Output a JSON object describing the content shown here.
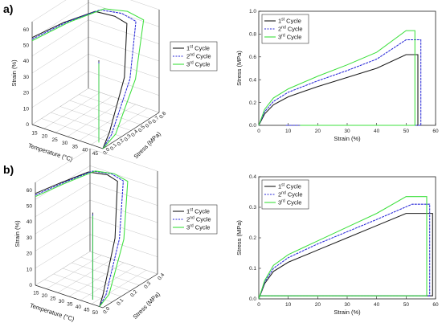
{
  "panel_labels": [
    "a)",
    "b)"
  ],
  "cycle_colors": [
    "#1a1a1a",
    "#2a2ad8",
    "#3ce03c"
  ],
  "chart_data": [
    {
      "id": "a-3d",
      "type": "line",
      "projection": "3d",
      "xlabel": "Temperature (°C)",
      "ylabel": "Stress (MPa)",
      "zlabel": "Strain (%)",
      "xticks": [
        "15",
        "20",
        "25",
        "30",
        "35",
        "40",
        "45"
      ],
      "yticks": [
        "0.0",
        "0.1",
        "0.2",
        "0.3",
        "0.4",
        "0.5",
        "0.6",
        "0.7",
        "0.8"
      ],
      "zticks": [
        "0",
        "10",
        "20",
        "30",
        "40",
        "50",
        "60"
      ],
      "xlim": [
        10,
        45
      ],
      "ylim": [
        0,
        0.8
      ],
      "zlim": [
        0,
        65
      ],
      "legend": {
        "position": "right",
        "entries": [
          {
            "sup": "st",
            "rest": " Cycle",
            "num": "1"
          },
          {
            "sup": "nd",
            "rest": " Cycle",
            "num": "2"
          },
          {
            "sup": "rd",
            "rest": " Cycle",
            "num": "3"
          }
        ]
      },
      "series": [
        {
          "name": "1st Cycle",
          "points": [
            [
              10,
              0.0,
              55
            ],
            [
              15,
              0.3,
              58
            ],
            [
              22,
              0.55,
              61
            ],
            [
              30,
              0.6,
              60
            ],
            [
              36,
              0.6,
              58
            ],
            [
              40,
              0.45,
              30
            ],
            [
              43,
              0.15,
              5
            ],
            [
              45,
              0.0,
              0
            ]
          ],
          "drop": [
            [
              43,
              0.0,
              55
            ],
            [
              43,
              0.0,
              40
            ],
            [
              43,
              0.0,
              20
            ],
            [
              43,
              0.0,
              5
            ]
          ]
        },
        {
          "name": "2nd Cycle",
          "points": [
            [
              10,
              0.0,
              54
            ],
            [
              15,
              0.35,
              57
            ],
            [
              22,
              0.62,
              60
            ],
            [
              30,
              0.7,
              59
            ],
            [
              37,
              0.7,
              57
            ],
            [
              41,
              0.5,
              28
            ],
            [
              44,
              0.15,
              4
            ],
            [
              45,
              0.0,
              0
            ]
          ],
          "drop": [
            [
              43,
              0.0,
              54
            ],
            [
              43,
              0.0,
              38
            ],
            [
              43,
              0.0,
              20
            ],
            [
              43,
              0.0,
              4
            ]
          ]
        },
        {
          "name": "3rd Cycle",
          "points": [
            [
              10,
              0.0,
              53
            ],
            [
              15,
              0.38,
              56
            ],
            [
              22,
              0.68,
              59
            ],
            [
              30,
              0.78,
              58
            ],
            [
              38,
              0.78,
              56
            ],
            [
              42,
              0.55,
              27
            ],
            [
              45,
              0.18,
              4
            ],
            [
              45,
              0.0,
              0
            ]
          ],
          "drop": [
            [
              43,
              0.0,
              53
            ],
            [
              43,
              0.0,
              37
            ],
            [
              43,
              0.0,
              20
            ],
            [
              43,
              0.0,
              3
            ]
          ]
        }
      ]
    },
    {
      "id": "a-2d",
      "type": "line",
      "xlabel": "Strain (%)",
      "ylabel": "Stress (MPa)",
      "xticks": [
        0,
        10,
        20,
        30,
        40,
        50,
        60
      ],
      "yticks": [
        "0.0",
        "0.2",
        "0.4",
        "0.6",
        "0.8",
        "1.0"
      ],
      "xlim": [
        0,
        60
      ],
      "ylim": [
        0,
        1.0
      ],
      "legend": {
        "position": "top-left",
        "entries": [
          {
            "sup": "st",
            "rest": " Cycle",
            "num": "1"
          },
          {
            "sup": "nd",
            "rest": " Cycle",
            "num": "2"
          },
          {
            "sup": "rd",
            "rest": " Cycle",
            "num": "3"
          }
        ]
      },
      "series": [
        {
          "name": "1st Cycle",
          "points": [
            [
              0,
              0.0
            ],
            [
              2,
              0.1
            ],
            [
              5,
              0.18
            ],
            [
              10,
              0.25
            ],
            [
              20,
              0.34
            ],
            [
              30,
              0.42
            ],
            [
              40,
              0.5
            ],
            [
              50,
              0.62
            ],
            [
              54,
              0.62
            ],
            [
              54,
              0.0
            ],
            [
              53,
              0.0
            ]
          ]
        },
        {
          "name": "2nd Cycle",
          "points": [
            [
              0,
              0.0
            ],
            [
              2,
              0.12
            ],
            [
              5,
              0.21
            ],
            [
              10,
              0.29
            ],
            [
              20,
              0.39
            ],
            [
              30,
              0.48
            ],
            [
              40,
              0.58
            ],
            [
              50,
              0.75
            ],
            [
              55,
              0.75
            ],
            [
              55,
              0.0
            ],
            [
              9,
              0.0
            ]
          ]
        },
        {
          "name": "3rd Cycle",
          "points": [
            [
              0,
              0.0
            ],
            [
              2,
              0.14
            ],
            [
              5,
              0.24
            ],
            [
              10,
              0.32
            ],
            [
              20,
              0.43
            ],
            [
              30,
              0.53
            ],
            [
              40,
              0.64
            ],
            [
              50,
              0.83
            ],
            [
              53,
              0.83
            ],
            [
              53,
              0.0
            ],
            [
              14,
              0.0
            ]
          ]
        }
      ]
    },
    {
      "id": "b-3d",
      "type": "line",
      "projection": "3d",
      "xlabel": "Temperature (°C)",
      "ylabel": "Stress (MPa)",
      "zlabel": "Strain (%)",
      "xticks": [
        "15",
        "20",
        "25",
        "30",
        "35",
        "40",
        "45",
        "50"
      ],
      "yticks": [
        "0.0",
        "0.1",
        "0.2",
        "0.3",
        "0.4"
      ],
      "zticks": [
        "0",
        "10",
        "20",
        "30",
        "40",
        "50",
        "60"
      ],
      "xlim": [
        10,
        50
      ],
      "ylim": [
        0,
        0.4
      ],
      "zlim": [
        0,
        65
      ],
      "legend": {
        "position": "right",
        "entries": [
          {
            "sup": "st",
            "rest": " Cycle",
            "num": "1"
          },
          {
            "sup": "nd",
            "rest": " Cycle",
            "num": "2"
          },
          {
            "sup": "rd",
            "rest": " Cycle",
            "num": "3"
          }
        ]
      },
      "series": [
        {
          "name": "1st Cycle",
          "points": [
            [
              10,
              0.0,
              58
            ],
            [
              15,
              0.12,
              60
            ],
            [
              22,
              0.24,
              63
            ],
            [
              30,
              0.28,
              62
            ],
            [
              36,
              0.28,
              60
            ],
            [
              41,
              0.2,
              30
            ],
            [
              46,
              0.05,
              4
            ],
            [
              48,
              0.0,
              0
            ]
          ],
          "drop": [
            [
              44,
              0.0,
              58
            ],
            [
              44,
              0.0,
              40
            ],
            [
              44,
              0.0,
              20
            ],
            [
              44,
              0.0,
              3
            ]
          ]
        },
        {
          "name": "2nd Cycle",
          "points": [
            [
              10,
              0.0,
              57
            ],
            [
              15,
              0.14,
              59
            ],
            [
              22,
              0.27,
              62
            ],
            [
              30,
              0.31,
              61
            ],
            [
              37,
              0.31,
              59
            ],
            [
              42,
              0.22,
              29
            ],
            [
              47,
              0.06,
              4
            ],
            [
              48,
              0.0,
              0
            ]
          ],
          "drop": [
            [
              44,
              0.0,
              57
            ],
            [
              44,
              0.0,
              39
            ],
            [
              44,
              0.0,
              20
            ],
            [
              44,
              0.0,
              3
            ]
          ]
        },
        {
          "name": "3rd Cycle",
          "points": [
            [
              10,
              0.0,
              56
            ],
            [
              15,
              0.15,
              58
            ],
            [
              22,
              0.29,
              61
            ],
            [
              30,
              0.33,
              60
            ],
            [
              38,
              0.33,
              58
            ],
            [
              43,
              0.24,
              28
            ],
            [
              48,
              0.07,
              4
            ],
            [
              48,
              0.0,
              0
            ]
          ],
          "drop": [
            [
              44,
              0.0,
              56
            ],
            [
              44,
              0.0,
              38
            ],
            [
              44,
              0.0,
              20
            ],
            [
              44,
              0.0,
              3
            ]
          ]
        }
      ]
    },
    {
      "id": "b-2d",
      "type": "line",
      "xlabel": "Strain (%)",
      "ylabel": "Stress (MPa)",
      "xticks": [
        0,
        10,
        20,
        30,
        40,
        50,
        60
      ],
      "yticks": [
        "0.0",
        "0.1",
        "0.2",
        "0.3",
        "0.4"
      ],
      "xlim": [
        0,
        60
      ],
      "ylim": [
        0,
        0.4
      ],
      "legend": {
        "position": "top-left",
        "entries": [
          {
            "sup": "st",
            "rest": " Cycle",
            "num": "1"
          },
          {
            "sup": "nd",
            "rest": " Cycle",
            "num": "2"
          },
          {
            "sup": "rd",
            "rest": " Cycle",
            "num": "3"
          }
        ]
      },
      "series": [
        {
          "name": "1st Cycle",
          "points": [
            [
              0,
              0.0
            ],
            [
              2,
              0.05
            ],
            [
              5,
              0.09
            ],
            [
              10,
              0.12
            ],
            [
              20,
              0.16
            ],
            [
              30,
              0.2
            ],
            [
              40,
              0.24
            ],
            [
              50,
              0.28
            ],
            [
              59,
              0.28
            ],
            [
              59,
              0.01
            ],
            [
              0,
              0.01
            ]
          ]
        },
        {
          "name": "2nd Cycle",
          "points": [
            [
              0,
              0.0
            ],
            [
              2,
              0.055
            ],
            [
              5,
              0.1
            ],
            [
              10,
              0.135
            ],
            [
              20,
              0.18
            ],
            [
              30,
              0.22
            ],
            [
              40,
              0.26
            ],
            [
              52,
              0.31
            ],
            [
              58,
              0.31
            ],
            [
              58,
              0.01
            ],
            [
              0,
              0.01
            ]
          ]
        },
        {
          "name": "3rd Cycle",
          "points": [
            [
              0,
              0.0
            ],
            [
              2,
              0.06
            ],
            [
              5,
              0.11
            ],
            [
              10,
              0.145
            ],
            [
              20,
              0.19
            ],
            [
              30,
              0.235
            ],
            [
              40,
              0.28
            ],
            [
              50,
              0.335
            ],
            [
              57,
              0.335
            ],
            [
              57,
              0.01
            ],
            [
              0,
              0.01
            ]
          ]
        }
      ]
    }
  ]
}
